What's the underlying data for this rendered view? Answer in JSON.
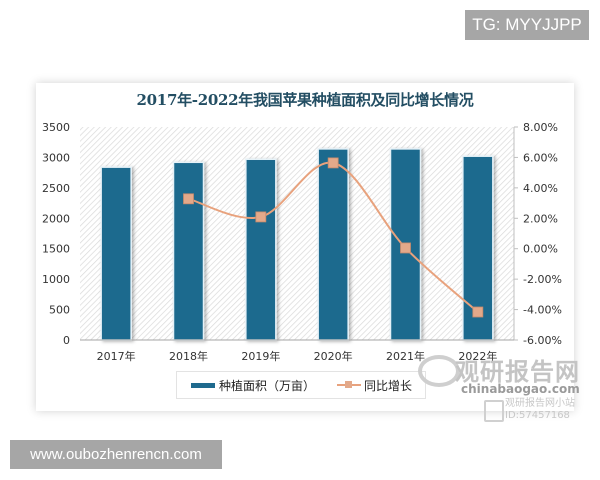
{
  "overlays": {
    "top_tag": "TG: MYYJJPP",
    "bottom_tag": "www.oubozhenrencn.com"
  },
  "watermark": {
    "brand_cn": "观研报告网",
    "brand_en": "chinabaogao.com",
    "small_line1": "观研报告网小站",
    "small_line2": "ID:57457168"
  },
  "legend": {
    "bar_label": "种植面积（万亩）",
    "line_label": "同比增长"
  },
  "colors": {
    "bar": "#1f6a8e",
    "line": "#e8a27d",
    "marker": "#e3a98a",
    "title": "#234e63"
  },
  "chart_data": {
    "type": "bar+line",
    "title": "2017年-2022年我国苹果种植面积及同比增长情况",
    "categories": [
      "2017年",
      "2018年",
      "2019年",
      "2020年",
      "2021年",
      "2022年"
    ],
    "series": [
      {
        "name": "种植面积（万亩）",
        "type": "bar",
        "axis": "left",
        "values": [
          2840,
          2920,
          2970,
          3140,
          3140,
          3020
        ]
      },
      {
        "name": "同比增长",
        "type": "line",
        "axis": "right",
        "unit": "%",
        "values": [
          null,
          3.28,
          2.09,
          5.64,
          0.05,
          -4.16
        ]
      }
    ],
    "left_axis": {
      "ylim": [
        0,
        3500
      ],
      "ticks": [
        "0",
        "500",
        "1000",
        "1500",
        "2000",
        "2500",
        "3000",
        "3500"
      ]
    },
    "right_axis": {
      "ylim": [
        -6,
        8
      ],
      "ticks": [
        "-6.00%",
        "-4.00%",
        "-2.00%",
        "0.00%",
        "2.00%",
        "4.00%",
        "6.00%",
        "8.00%"
      ]
    },
    "xlabel": "",
    "ylabel": "",
    "grid": false,
    "legend_position": "bottom"
  }
}
